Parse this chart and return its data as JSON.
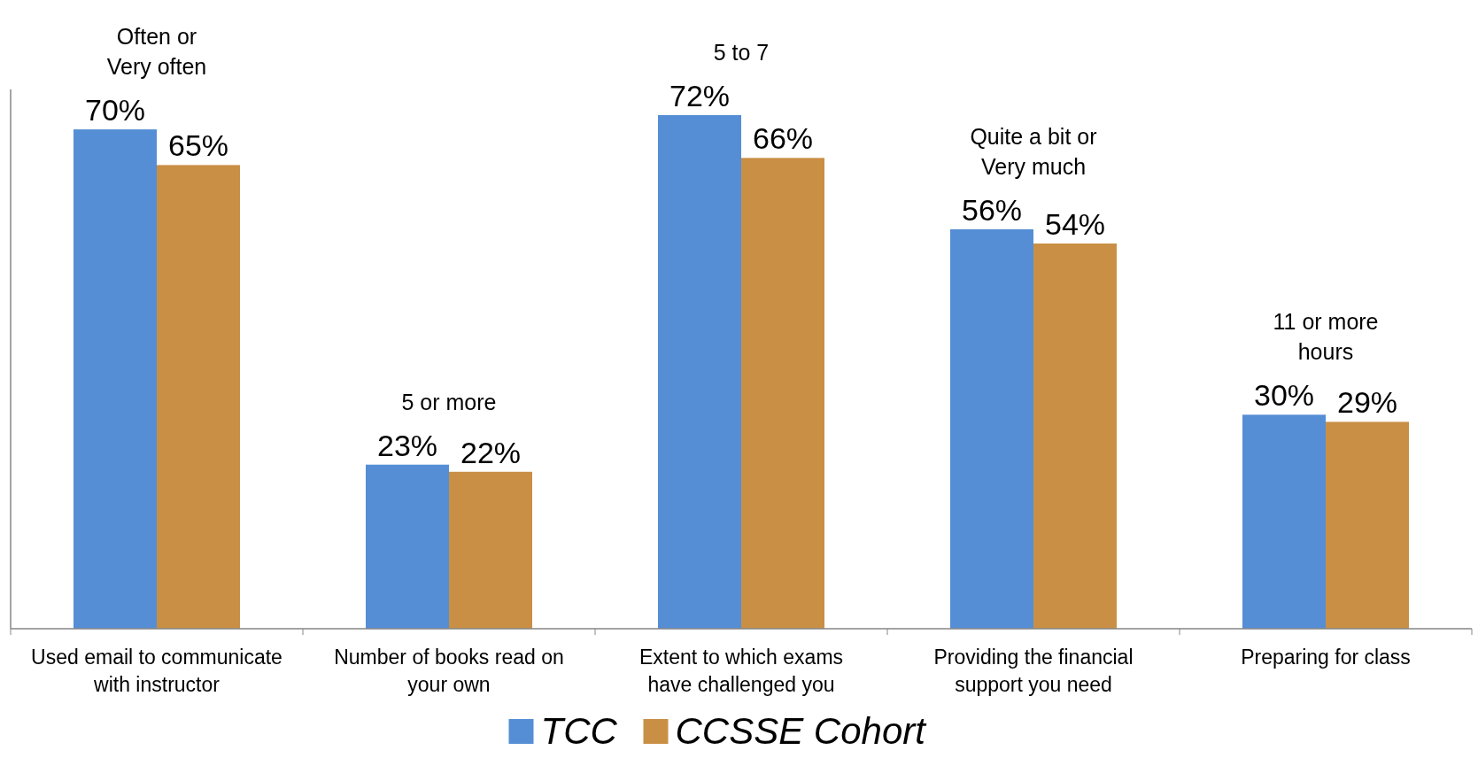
{
  "chart_data": {
    "type": "bar",
    "categories": [
      "Used email to communicate with instructor",
      "Number of books read on your own",
      "Extent to which exams have challenged you",
      "Providing the financial support you need",
      "Preparing for class"
    ],
    "series": [
      {
        "name": "TCC",
        "color": "#558ed5",
        "values": [
          70,
          23,
          72,
          56,
          30
        ],
        "value_labels": [
          "70%",
          "23%",
          "72%",
          "56%",
          "30%"
        ]
      },
      {
        "name": "CCSSE Cohort",
        "color": "#c98f45",
        "values": [
          65,
          22,
          66,
          54,
          29
        ],
        "value_labels": [
          "65%",
          "22%",
          "66%",
          "54%",
          "29%"
        ]
      }
    ],
    "annotations": [
      "Often or\nVery often",
      "5 or more",
      "5 to 7",
      "Quite a bit or\nVery much",
      "11 or more\nhours"
    ],
    "legend": "bottom"
  }
}
